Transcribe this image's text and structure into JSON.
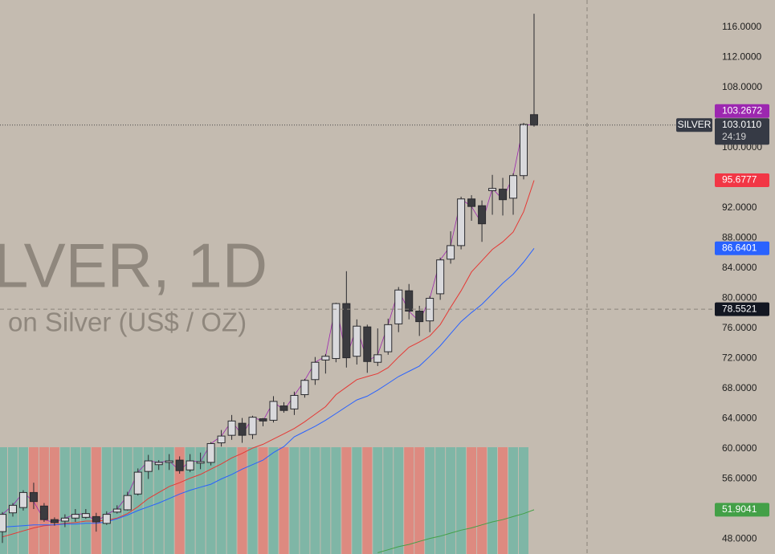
{
  "chart_data": {
    "type": "candlestick",
    "title": "LVER, 1D",
    "subtitle": "on Silver (US$ / OZ)",
    "symbol": "SILVER",
    "countdown": "24:19",
    "open": [
      49.0,
      51.5,
      52.2,
      54.2,
      52.4,
      50.6,
      50.4,
      50.8,
      50.9,
      51.0,
      50.1,
      51.6,
      51.9,
      54.0,
      57.0,
      57.9,
      58.2,
      58.5,
      57.2,
      58.1,
      58.2,
      60.8,
      61.8,
      63.4,
      61.9,
      64.0,
      63.8,
      65.7,
      65.3,
      67.2,
      69.2,
      71.8,
      72.0,
      79.3,
      72.3,
      76.2,
      71.5,
      72.9,
      76.6,
      81.0,
      78.3,
      77.0,
      80.6,
      85.2,
      87.0,
      93.2,
      92.3,
      94.3,
      94.5,
      93.3,
      96.3,
      104.4
    ],
    "high": [
      51.6,
      52.8,
      54.5,
      55.5,
      52.8,
      50.9,
      51.3,
      52.0,
      52.0,
      51.5,
      51.7,
      52.5,
      54.3,
      57.4,
      59.2,
      58.5,
      59.3,
      59.0,
      59.3,
      59.5,
      60.9,
      62.5,
      64.5,
      64.1,
      64.4,
      64.1,
      67.0,
      66.2,
      67.6,
      69.3,
      72.2,
      72.6,
      79.4,
      83.6,
      77.2,
      76.5,
      76.0,
      77.3,
      81.5,
      81.9,
      79.0,
      80.3,
      85.4,
      88.9,
      93.5,
      93.7,
      93.0,
      96.4,
      96.0,
      96.6,
      103.3,
      117.8
    ],
    "low": [
      47.5,
      51.0,
      51.8,
      52.0,
      50.3,
      49.8,
      49.6,
      50.3,
      50.7,
      49.0,
      49.9,
      51.4,
      51.8,
      53.8,
      56.0,
      57.2,
      57.2,
      56.7,
      56.9,
      57.3,
      57.8,
      60.3,
      61.2,
      60.8,
      61.3,
      63.0,
      63.5,
      64.8,
      64.5,
      66.8,
      68.5,
      70.0,
      71.5,
      70.8,
      71.2,
      70.1,
      71.0,
      72.5,
      75.5,
      77.2,
      75.0,
      75.5,
      79.8,
      84.6,
      86.5,
      90.3,
      87.5,
      91.1,
      91.0,
      91.1,
      95.8,
      102.8
    ],
    "close": [
      51.3,
      52.5,
      54.2,
      53.0,
      50.6,
      50.2,
      50.8,
      51.3,
      51.4,
      50.3,
      51.3,
      52.0,
      53.8,
      56.9,
      58.4,
      58.2,
      58.4,
      57.1,
      58.4,
      58.3,
      60.7,
      61.7,
      63.7,
      61.8,
      64.2,
      63.7,
      66.3,
      65.1,
      67.1,
      69.1,
      71.5,
      72.3,
      79.3,
      72.1,
      76.3,
      71.6,
      72.5,
      76.5,
      81.1,
      78.3,
      76.9,
      80.0,
      85.1,
      87.0,
      93.2,
      92.2,
      89.9,
      94.6,
      93.1,
      96.3,
      103.1,
      103.011
    ],
    "overlays": [
      {
        "color": "#e53935",
        "values": [
          48.3,
          48.7,
          49.1,
          49.5,
          49.8,
          49.9,
          50.1,
          50.2,
          50.4,
          50.4,
          50.5,
          50.8,
          51.4,
          52.3,
          53.4,
          54.2,
          55.0,
          55.5,
          56.1,
          56.6,
          57.3,
          58.0,
          58.8,
          59.4,
          60.1,
          60.6,
          61.3,
          62.0,
          62.7,
          63.6,
          64.6,
          65.6,
          67.2,
          68.2,
          69.2,
          69.6,
          70.0,
          70.8,
          72.2,
          73.5,
          74.2,
          75.0,
          76.5,
          78.8,
          81.0,
          83.5,
          85.0,
          86.5,
          87.5,
          88.8,
          91.5,
          95.6777
        ]
      },
      {
        "color": "#2962ff",
        "values": [
          49.6,
          49.7,
          49.8,
          49.9,
          49.9,
          49.9,
          50.0,
          50.0,
          50.1,
          50.1,
          50.3,
          50.7,
          51.2,
          51.8,
          52.3,
          52.8,
          53.4,
          54.0,
          54.5,
          54.9,
          55.3,
          56.0,
          56.6,
          57.3,
          57.9,
          58.5,
          59.5,
          60.3,
          61.6,
          62.3,
          63.0,
          63.8,
          64.7,
          65.6,
          66.5,
          67.0,
          67.8,
          68.7,
          69.6,
          70.3,
          71.0,
          72.3,
          73.7,
          75.3,
          76.9,
          78.1,
          79.2,
          80.6,
          82.0,
          83.2,
          84.8,
          86.6401
        ]
      },
      {
        "color": "#43a047",
        "values": [
          null,
          null,
          null,
          null,
          null,
          null,
          null,
          null,
          null,
          null,
          null,
          null,
          null,
          null,
          null,
          null,
          null,
          null,
          null,
          null,
          null,
          null,
          null,
          null,
          null,
          null,
          null,
          null,
          null,
          null,
          null,
          null,
          null,
          null,
          null,
          null,
          46.2,
          46.6,
          47.0,
          47.3,
          47.7,
          48.1,
          48.4,
          48.8,
          49.2,
          49.5,
          49.9,
          50.3,
          50.6,
          51.0,
          51.4,
          51.9041
        ]
      }
    ],
    "price_tags": [
      {
        "value": 103.2672,
        "label": "103.2672",
        "color": "#9c27b0"
      },
      {
        "value": 103.011,
        "label": "103.0110",
        "color": "#363a45"
      },
      {
        "value": 95.6777,
        "label": "95.6777",
        "color": "#f23645"
      },
      {
        "value": 86.6401,
        "label": "86.6401",
        "color": "#2962ff"
      },
      {
        "value": 78.5521,
        "label": "78.5521",
        "color": "#131722"
      },
      {
        "value": 51.9041,
        "label": "51.9041",
        "color": "#43a047"
      }
    ],
    "ylim": [
      46.03,
      119.63
    ],
    "yticks": [
      {
        "value": 116,
        "label": "116.0000"
      },
      {
        "value": 112,
        "label": "112.0000"
      },
      {
        "value": 108,
        "label": "108.0000"
      },
      {
        "value": 100,
        "label": "100.0000"
      },
      {
        "value": 92,
        "label": "92.0000"
      },
      {
        "value": 88,
        "label": "88.0000"
      },
      {
        "value": 84,
        "label": "84.0000"
      },
      {
        "value": 80,
        "label": "80.0000"
      },
      {
        "value": 76,
        "label": "76.0000"
      },
      {
        "value": 72,
        "label": "72.0000"
      },
      {
        "value": 68,
        "label": "68.0000"
      },
      {
        "value": 64,
        "label": "64.0000"
      },
      {
        "value": 60,
        "label": "60.0000"
      },
      {
        "value": 56,
        "label": "56.0000"
      },
      {
        "value": 48,
        "label": "48.0000"
      }
    ],
    "up_color": "#d9d9dc",
    "down_color": "#3b3b3f",
    "bar_up_color": "#7fb6a6",
    "bar_down_color": "#dd8a80"
  }
}
